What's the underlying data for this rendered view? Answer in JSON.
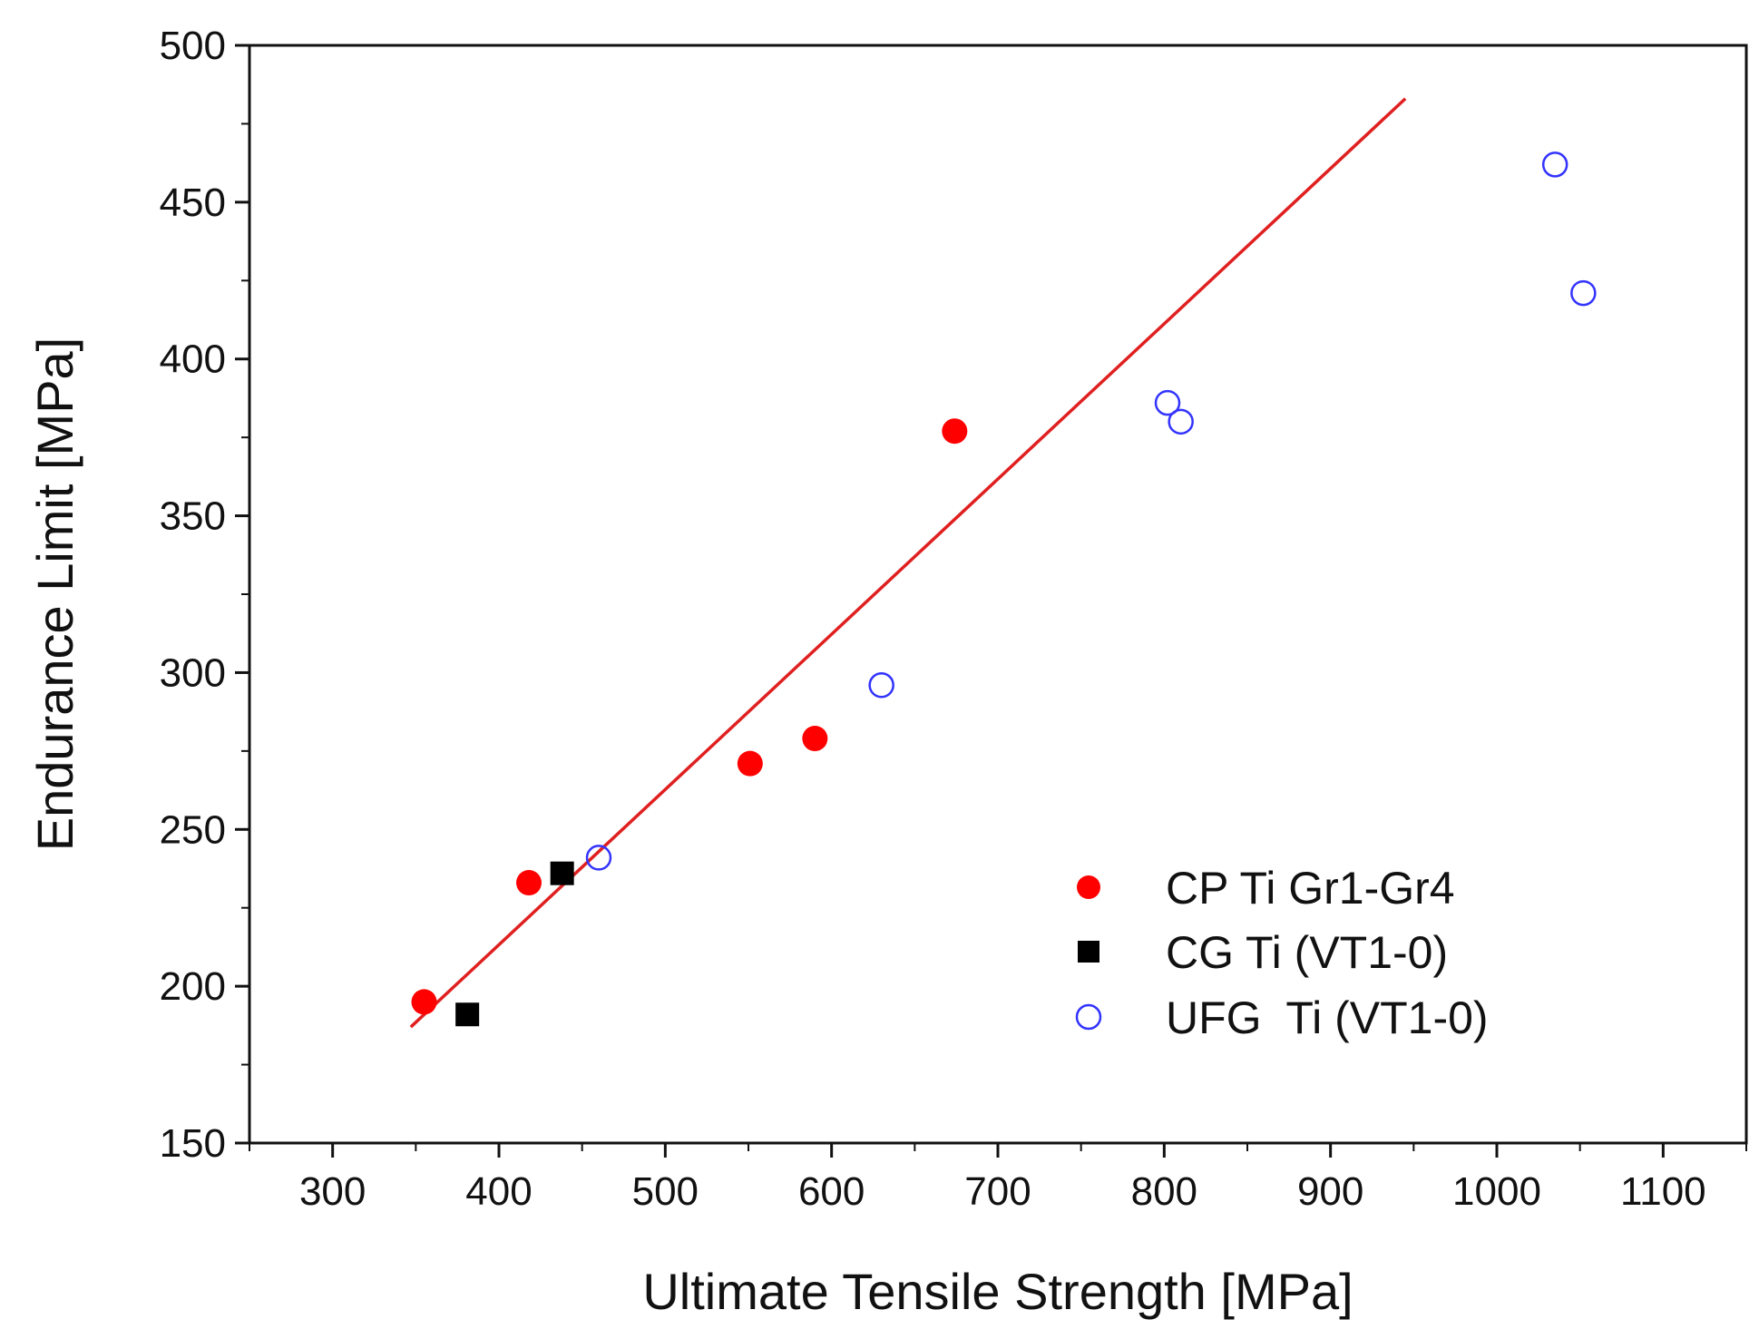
{
  "chart_data": {
    "type": "scatter",
    "title": "",
    "xlabel": "Ultimate Tensile Strength [MPa]",
    "ylabel": "Endurance Limit [MPa]",
    "xlim": [
      250,
      1150
    ],
    "ylim": [
      150,
      500
    ],
    "xticks": [
      300,
      400,
      500,
      600,
      700,
      800,
      900,
      1000,
      1100
    ],
    "yticks": [
      150,
      200,
      250,
      300,
      350,
      400,
      450,
      500
    ],
    "grid": false,
    "legend_position": "bottom-right",
    "series": [
      {
        "name": "CP Ti Gr1-Gr4",
        "marker": "filled-circle",
        "color": "#ff0000",
        "points": [
          [
            355,
            195
          ],
          [
            418,
            233
          ],
          [
            551,
            271
          ],
          [
            590,
            279
          ],
          [
            674,
            377
          ]
        ]
      },
      {
        "name": "CG Ti (VT1-0)",
        "marker": "filled-square",
        "color": "#000000",
        "points": [
          [
            381,
            191
          ],
          [
            438,
            236
          ]
        ]
      },
      {
        "name": "UFG  Ti (VT1-0)",
        "marker": "open-circle",
        "color": "#3333ff",
        "points": [
          [
            460,
            241
          ],
          [
            630,
            296
          ],
          [
            802,
            386
          ],
          [
            810,
            380
          ],
          [
            1035,
            462
          ],
          [
            1052,
            421
          ]
        ]
      }
    ],
    "fit_line": {
      "color": "#e02020",
      "points": [
        [
          347,
          187
        ],
        [
          945,
          483
        ]
      ]
    }
  }
}
